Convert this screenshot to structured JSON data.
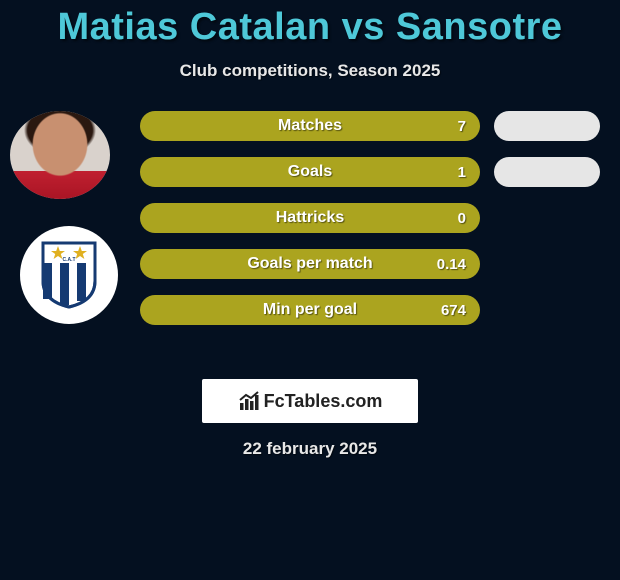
{
  "palette": {
    "background": "#041020",
    "accent_text": "#4ec8d8",
    "subtitle_text": "#e8e8e8",
    "bar_color": "#aba41f",
    "pill_color": "#e6e6e6",
    "shield_stripe": "#153a72",
    "shield_white": "#ffffff",
    "star_color": "#e0b020"
  },
  "header": {
    "title": "Matias Catalan vs Sansotre",
    "subtitle": "Club competitions, Season 2025"
  },
  "stats": [
    {
      "label": "Matches",
      "value": "7",
      "show_right_pill": true
    },
    {
      "label": "Goals",
      "value": "1",
      "show_right_pill": true
    },
    {
      "label": "Hattricks",
      "value": "0",
      "show_right_pill": false
    },
    {
      "label": "Goals per match",
      "value": "0.14",
      "show_right_pill": false
    },
    {
      "label": "Min per goal",
      "value": "674",
      "show_right_pill": false
    }
  ],
  "footer": {
    "brand_text": "FcTables.com",
    "date_text": "22 february 2025"
  },
  "club": {
    "initials": "C.A.T"
  }
}
